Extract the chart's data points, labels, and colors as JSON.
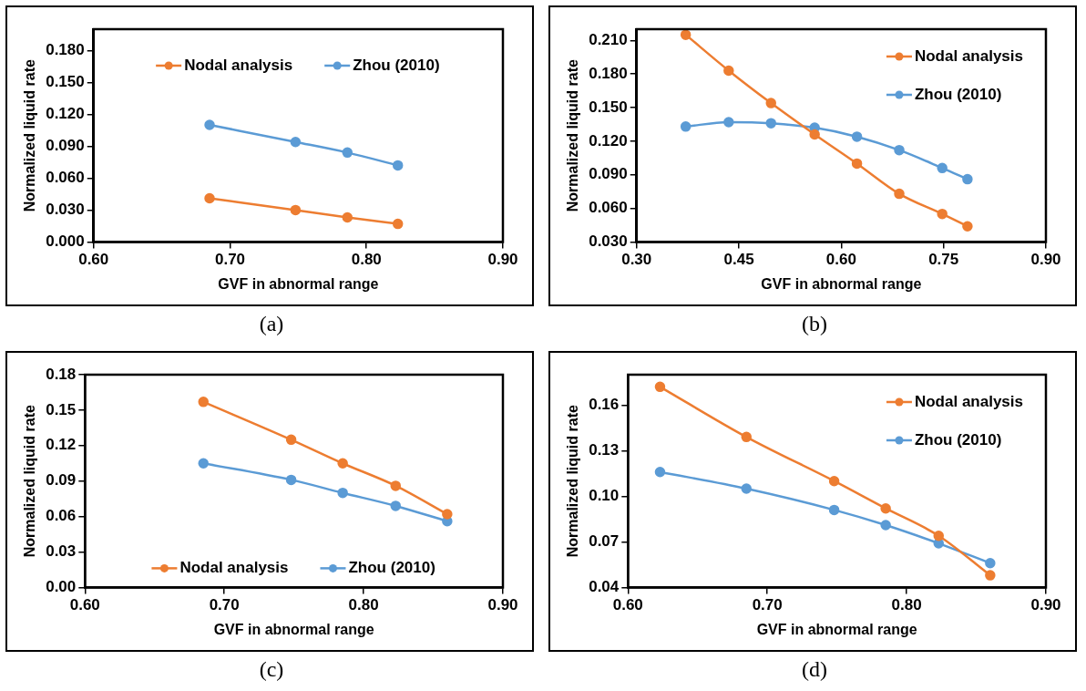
{
  "chart_data": [
    {
      "type": "line",
      "xlabel": "GVF in abnormal range",
      "ylabel": "Normalized liquid rate",
      "annotations": [
        "(a)"
      ],
      "legend": "top",
      "marker": "circle",
      "grid": false,
      "xlim": [
        0.6,
        0.9
      ],
      "xticks": [
        {
          "value": 0.6,
          "label": "0.60"
        },
        {
          "value": 0.7,
          "label": "0.70"
        },
        {
          "value": 0.8,
          "label": "0.80"
        },
        {
          "value": 0.9,
          "label": "0.90"
        }
      ],
      "ylim": [
        0,
        0.2
      ],
      "yticks": [
        {
          "value": 0,
          "label": "0.000"
        },
        {
          "value": 0.03,
          "label": "0.030"
        },
        {
          "value": 0.06,
          "label": "0.060"
        },
        {
          "value": 0.09,
          "label": "0.090"
        },
        {
          "value": 0.12,
          "label": "0.120"
        },
        {
          "value": 0.15,
          "label": "0.150"
        },
        {
          "value": 0.18,
          "label": "0.180"
        }
      ],
      "x": [
        0.685,
        0.748,
        0.786,
        0.823
      ],
      "series": [
        {
          "name": "Nodal analysis",
          "color": "#ed7d31",
          "values": [
            0.041,
            0.03,
            0.023,
            0.017
          ]
        },
        {
          "name": "Zhou (2010)",
          "color": "#5b9bd5",
          "values": [
            0.11,
            0.094,
            0.084,
            0.072
          ]
        }
      ]
    },
    {
      "type": "line",
      "xlabel": "GVF in abnormal range",
      "ylabel": "Normalized liquid rate",
      "annotations": [
        "(b)"
      ],
      "legend": "top right",
      "marker": "circle",
      "grid": false,
      "xlim": [
        0.3,
        0.9
      ],
      "xticks": [
        {
          "value": 0.3,
          "label": "0.30"
        },
        {
          "value": 0.45,
          "label": "0.45"
        },
        {
          "value": 0.6,
          "label": "0.60"
        },
        {
          "value": 0.75,
          "label": "0.75"
        },
        {
          "value": 0.9,
          "label": "0.90"
        }
      ],
      "ylim": [
        0.03,
        0.22
      ],
      "yticks": [
        {
          "value": 0.03,
          "label": "0.030"
        },
        {
          "value": 0.06,
          "label": "0.060"
        },
        {
          "value": 0.09,
          "label": "0.090"
        },
        {
          "value": 0.12,
          "label": "0.120"
        },
        {
          "value": 0.15,
          "label": "0.150"
        },
        {
          "value": 0.18,
          "label": "0.180"
        },
        {
          "value": 0.21,
          "label": "0.210"
        }
      ],
      "x": [
        0.372,
        0.435,
        0.497,
        0.561,
        0.623,
        0.685,
        0.748,
        0.785
      ],
      "series": [
        {
          "name": "Nodal analysis",
          "color": "#ed7d31",
          "values": [
            0.215,
            0.183,
            0.154,
            0.126,
            0.1,
            0.073,
            0.055,
            0.044
          ]
        },
        {
          "name": "Zhou (2010)",
          "color": "#5b9bd5",
          "values": [
            0.133,
            0.137,
            0.136,
            0.132,
            0.124,
            0.112,
            0.096,
            0.086
          ]
        }
      ]
    },
    {
      "type": "line",
      "xlabel": "GVF in abnormal range",
      "ylabel": "Normalized liquid rate",
      "annotations": [
        "(c)"
      ],
      "legend": "bottom",
      "marker": "circle",
      "grid": false,
      "xlim": [
        0.6,
        0.9
      ],
      "xticks": [
        {
          "value": 0.6,
          "label": "0.60"
        },
        {
          "value": 0.7,
          "label": "0.70"
        },
        {
          "value": 0.8,
          "label": "0.80"
        },
        {
          "value": 0.9,
          "label": "0.90"
        }
      ],
      "ylim": [
        0,
        0.18
      ],
      "yticks": [
        {
          "value": 0,
          "label": "0.00"
        },
        {
          "value": 0.03,
          "label": "0.03"
        },
        {
          "value": 0.06,
          "label": "0.06"
        },
        {
          "value": 0.09,
          "label": "0.09"
        },
        {
          "value": 0.12,
          "label": "0.12"
        },
        {
          "value": 0.15,
          "label": "0.15"
        },
        {
          "value": 0.18,
          "label": "0.18"
        }
      ],
      "x": [
        0.685,
        0.748,
        0.785,
        0.823,
        0.86
      ],
      "series": [
        {
          "name": "Nodal analysis",
          "color": "#ed7d31",
          "values": [
            0.157,
            0.125,
            0.105,
            0.086,
            0.062
          ]
        },
        {
          "name": "Zhou (2010)",
          "color": "#5b9bd5",
          "values": [
            0.105,
            0.091,
            0.08,
            0.069,
            0.056
          ]
        }
      ]
    },
    {
      "type": "line",
      "xlabel": "GVF in abnormal range",
      "ylabel": "Normalized liquid rate",
      "annotations": [
        "(d)"
      ],
      "legend": "top right",
      "marker": "circle",
      "grid": false,
      "xlim": [
        0.6,
        0.9
      ],
      "xticks": [
        {
          "value": 0.6,
          "label": "0.60"
        },
        {
          "value": 0.7,
          "label": "0.70"
        },
        {
          "value": 0.8,
          "label": "0.80"
        },
        {
          "value": 0.9,
          "label": "0.90"
        }
      ],
      "ylim": [
        0.04,
        0.18
      ],
      "yticks": [
        {
          "value": 0.04,
          "label": "0.04"
        },
        {
          "value": 0.07,
          "label": "0.07"
        },
        {
          "value": 0.1,
          "label": "0.10"
        },
        {
          "value": 0.13,
          "label": "0.13"
        },
        {
          "value": 0.16,
          "label": "0.16"
        }
      ],
      "x": [
        0.623,
        0.685,
        0.748,
        0.785,
        0.823,
        0.86
      ],
      "series": [
        {
          "name": "Nodal analysis",
          "color": "#ed7d31",
          "values": [
            0.172,
            0.139,
            0.11,
            0.092,
            0.074,
            0.048
          ]
        },
        {
          "name": "Zhou (2010)",
          "color": "#5b9bd5",
          "values": [
            0.116,
            0.105,
            0.091,
            0.081,
            0.069,
            0.056
          ]
        }
      ]
    }
  ]
}
